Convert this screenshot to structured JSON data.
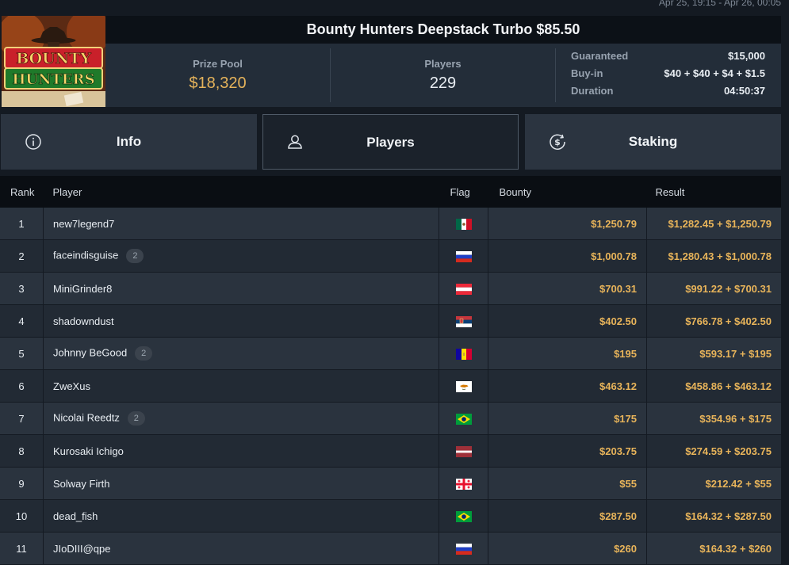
{
  "date_range": "Apr 25, 19:15 - Apr 26, 00:05",
  "logo": {
    "line1": "BOUNTY",
    "line2": "HUNTERS"
  },
  "tournament": {
    "title": "Bounty Hunters Deepstack Turbo $85.50",
    "prize_pool_label": "Prize Pool",
    "prize_pool": "$18,320",
    "players_label": "Players",
    "players": "229",
    "guaranteed_label": "Guaranteed",
    "guaranteed": "$15,000",
    "buyin_label": "Buy-in",
    "buyin": "$40 + $40 + $4 + $1.5",
    "duration_label": "Duration",
    "duration": "04:50:37"
  },
  "tabs": [
    {
      "label": "Info",
      "icon": "info-icon"
    },
    {
      "label": "Players",
      "icon": "user-icon"
    },
    {
      "label": "Staking",
      "icon": "dollar-coin-icon"
    }
  ],
  "table": {
    "headers": {
      "rank": "Rank",
      "player": "Player",
      "flag": "Flag",
      "bounty": "Bounty",
      "result": "Result"
    },
    "rows": [
      {
        "rank": "1",
        "player": "new7legend7",
        "badge": "",
        "flag": "mexico",
        "bounty": "$1,250.79",
        "result": "$1,282.45 + $1,250.79"
      },
      {
        "rank": "2",
        "player": "faceindisguise",
        "badge": "2",
        "flag": "russia",
        "bounty": "$1,000.78",
        "result": "$1,280.43 + $1,000.78"
      },
      {
        "rank": "3",
        "player": "MiniGrinder8",
        "badge": "",
        "flag": "austria",
        "bounty": "$700.31",
        "result": "$991.22 + $700.31"
      },
      {
        "rank": "4",
        "player": "shadowndust",
        "badge": "",
        "flag": "serbia",
        "bounty": "$402.50",
        "result": "$766.78 + $402.50"
      },
      {
        "rank": "5",
        "player": "Johnny BeGood",
        "badge": "2",
        "flag": "andorra",
        "bounty": "$195",
        "result": "$593.17 + $195"
      },
      {
        "rank": "6",
        "player": "ZweXus",
        "badge": "",
        "flag": "cyprus",
        "bounty": "$463.12",
        "result": "$458.86 + $463.12"
      },
      {
        "rank": "7",
        "player": "Nicolai Reedtz",
        "badge": "2",
        "flag": "brazil",
        "bounty": "$175",
        "result": "$354.96 + $175"
      },
      {
        "rank": "8",
        "player": "Kurosaki Ichigo",
        "badge": "",
        "flag": "latvia",
        "bounty": "$203.75",
        "result": "$274.59 + $203.75"
      },
      {
        "rank": "9",
        "player": "Solway Firth",
        "badge": "",
        "flag": "georgia",
        "bounty": "$55",
        "result": "$212.42 + $55"
      },
      {
        "rank": "10",
        "player": "dead_fish",
        "badge": "",
        "flag": "brazil",
        "bounty": "$287.50",
        "result": "$164.32 + $287.50"
      },
      {
        "rank": "11",
        "player": "JIoDIII@qpe",
        "badge": "",
        "flag": "russia",
        "bounty": "$260",
        "result": "$164.32 + $260"
      }
    ]
  }
}
